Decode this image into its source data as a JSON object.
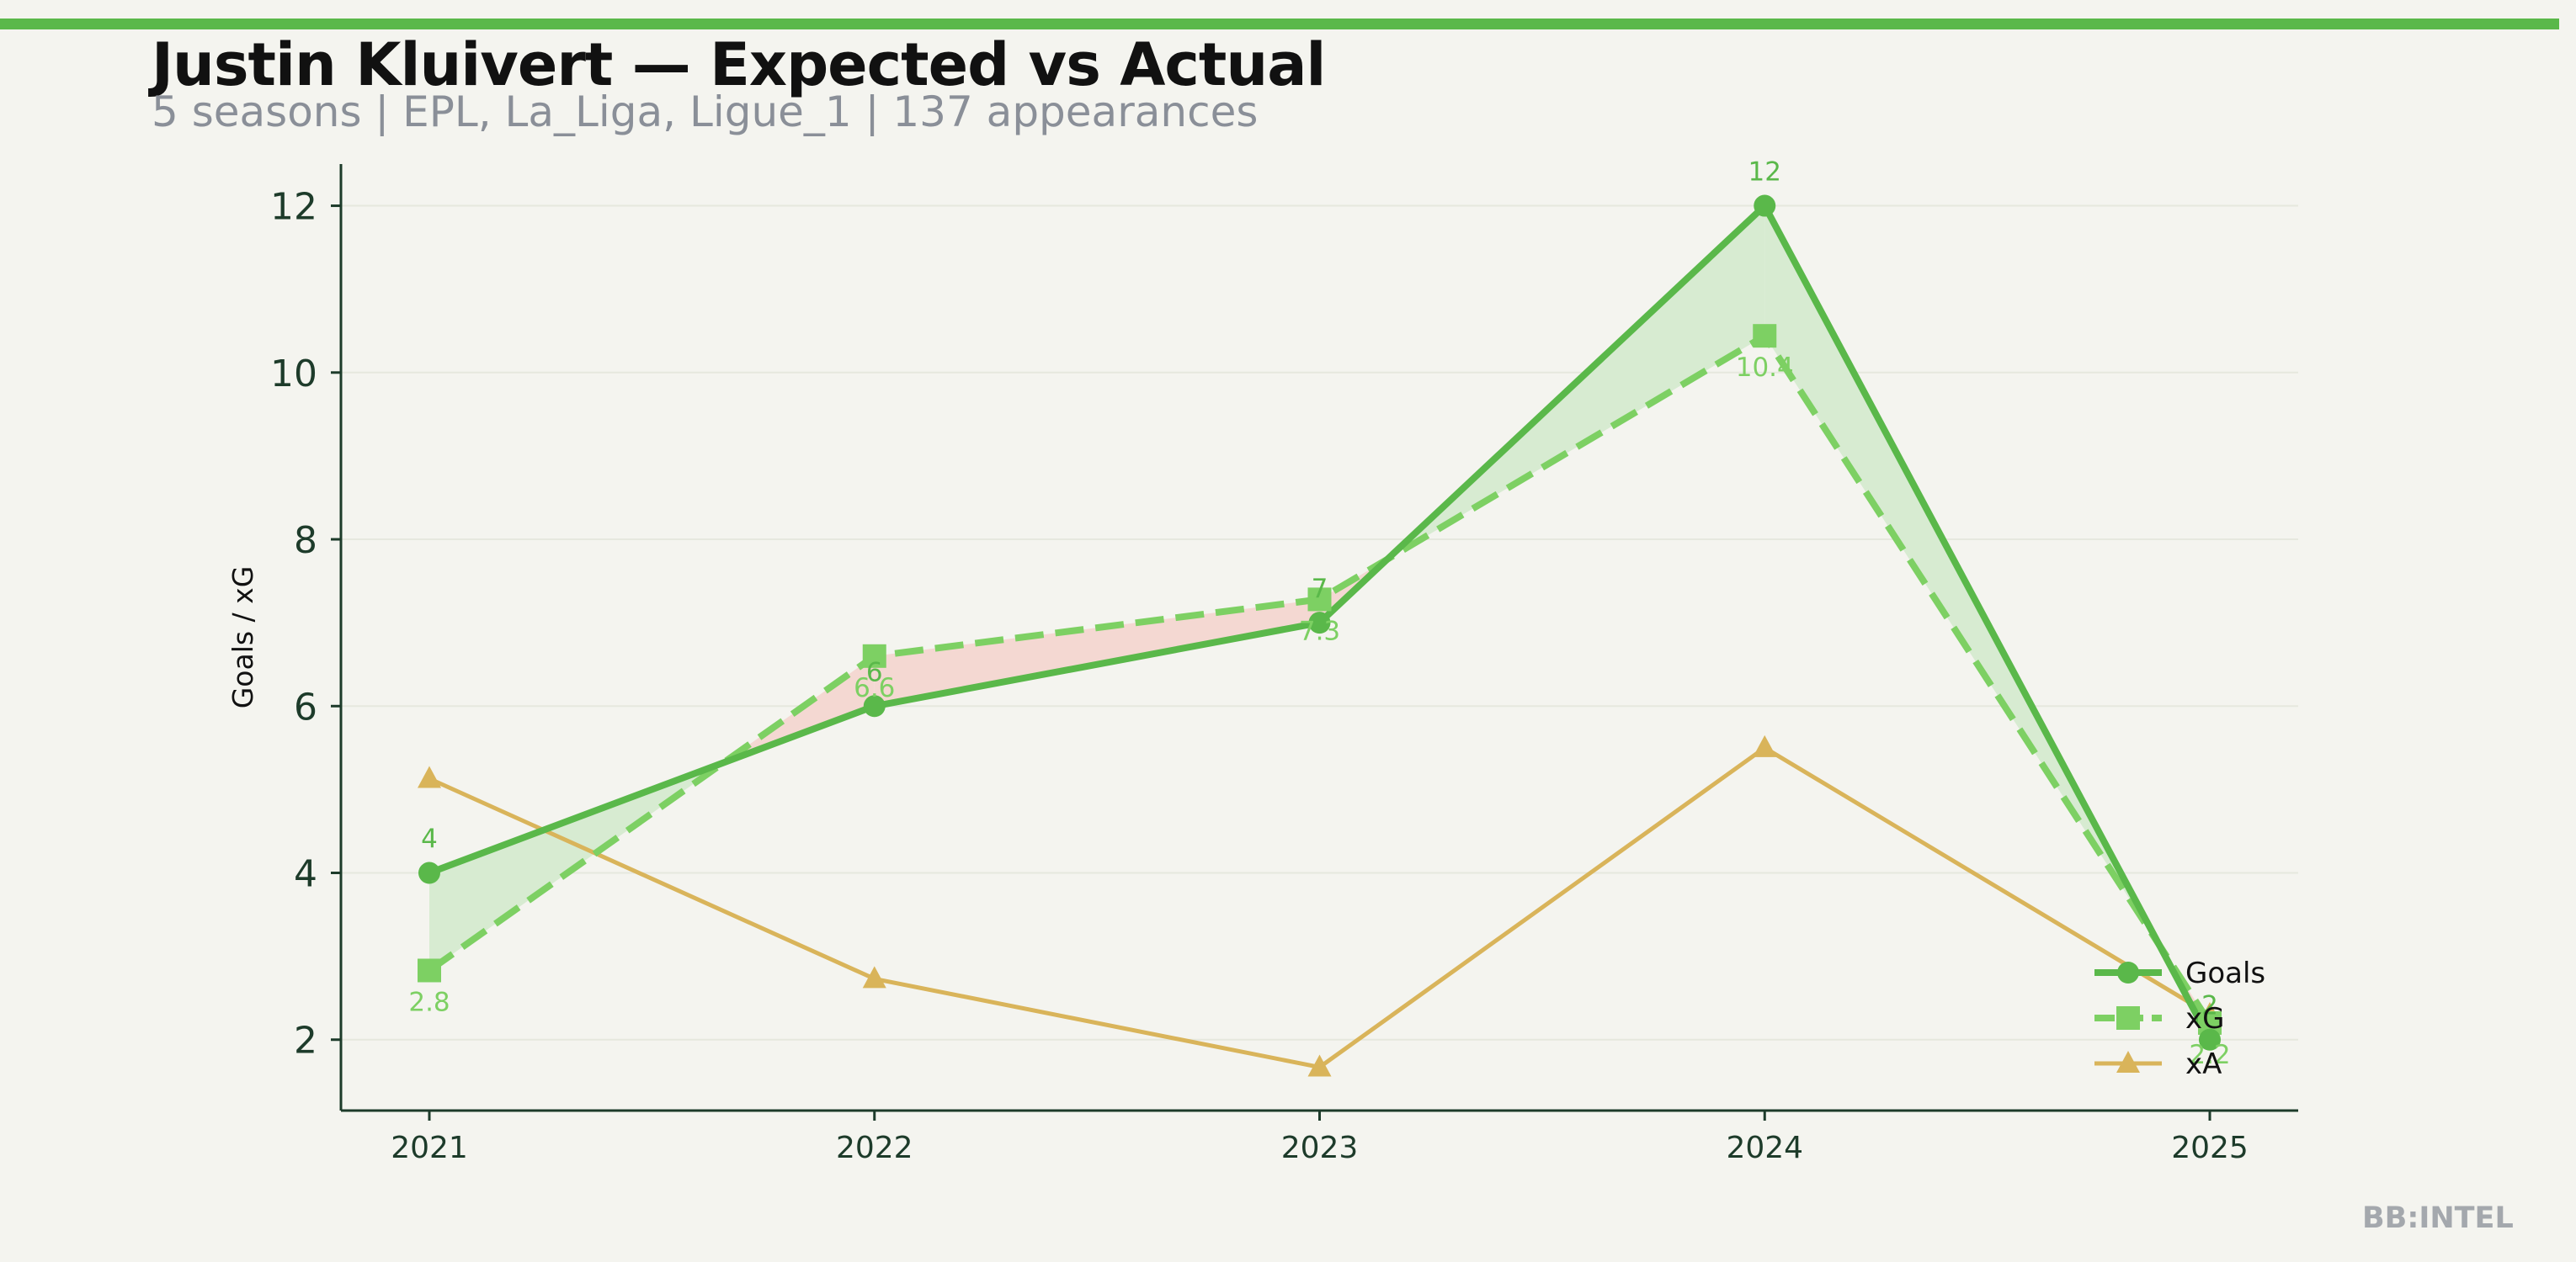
{
  "header": {
    "title": "Justin Kluivert — Expected vs Actual",
    "subtitle": "5 seasons | EPL, La_Liga, Ligue_1 | 137 appearances",
    "brand": "BB:INTEL"
  },
  "colors": {
    "accent": "#5ab84a",
    "goals": "#5ab84a",
    "xg": "#7dd063",
    "xa": "#d9b45a",
    "over_fill": "#d7ebd1",
    "under_fill": "#f4d8d2",
    "background": "#f4f4ef"
  },
  "chart_data": {
    "type": "line",
    "title": "",
    "xlabel": "",
    "ylabel": "Goals / xG",
    "categories": [
      "2021",
      "2022",
      "2023",
      "2024",
      "2025"
    ],
    "yticks": [
      "2",
      "4",
      "6",
      "8",
      "10",
      "12"
    ],
    "ylim": [
      1.15,
      12.5
    ],
    "grid": true,
    "legend_position": "bottom-right",
    "series": [
      {
        "key": "goals",
        "name": "Goals",
        "values": [
          4,
          6,
          7,
          12,
          2
        ],
        "labels": [
          "4",
          "6",
          "7",
          "12",
          "2"
        ],
        "marker": "circle",
        "style": "solid"
      },
      {
        "key": "xg",
        "name": "xG",
        "values": [
          2.83,
          6.6,
          7.28,
          10.44,
          2.2
        ],
        "labels": [
          "2.8",
          "6.6",
          "7.3",
          "10.4",
          "2.2"
        ],
        "marker": "square",
        "style": "dashed"
      },
      {
        "key": "xa",
        "name": "xA",
        "values": [
          5.13,
          2.73,
          1.67,
          5.5,
          2.3
        ],
        "marker": "triangle",
        "style": "solid"
      }
    ]
  }
}
